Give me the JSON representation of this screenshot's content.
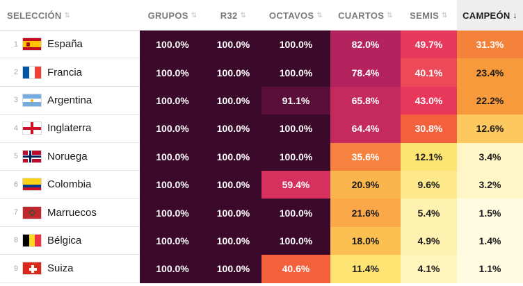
{
  "header": {
    "columns": [
      {
        "key": "seleccion",
        "label": "SELECCIÓN",
        "sort_icon": "sort-both-icon"
      },
      {
        "key": "grupos",
        "label": "GRUPOS",
        "sort_icon": "sort-both-icon"
      },
      {
        "key": "r32",
        "label": "R32",
        "sort_icon": "sort-both-icon"
      },
      {
        "key": "octavos",
        "label": "OCTAVOS",
        "sort_icon": "sort-both-icon"
      },
      {
        "key": "cuartos",
        "label": "CUARTOS",
        "sort_icon": "sort-both-icon"
      },
      {
        "key": "semis",
        "label": "SEMIS",
        "sort_icon": "sort-both-icon"
      },
      {
        "key": "campeon",
        "label": "CAMPEÓN",
        "sort_icon": "sort-desc-icon",
        "active": true
      }
    ]
  },
  "rows": [
    {
      "rank": "1",
      "team": "España",
      "flag": "flag-spain-icon",
      "values": [
        "100.0%",
        "100.0%",
        "100.0%",
        "82.0%",
        "49.7%",
        "31.3%"
      ]
    },
    {
      "rank": "2",
      "team": "Francia",
      "flag": "flag-france-icon",
      "values": [
        "100.0%",
        "100.0%",
        "100.0%",
        "78.4%",
        "40.1%",
        "23.4%"
      ]
    },
    {
      "rank": "3",
      "team": "Argentina",
      "flag": "flag-argentina-icon",
      "values": [
        "100.0%",
        "100.0%",
        "91.1%",
        "65.8%",
        "43.0%",
        "22.2%"
      ]
    },
    {
      "rank": "4",
      "team": "Inglaterra",
      "flag": "flag-england-icon",
      "values": [
        "100.0%",
        "100.0%",
        "100.0%",
        "64.4%",
        "30.8%",
        "12.6%"
      ]
    },
    {
      "rank": "5",
      "team": "Noruega",
      "flag": "flag-norway-icon",
      "values": [
        "100.0%",
        "100.0%",
        "100.0%",
        "35.6%",
        "12.1%",
        "3.4%"
      ]
    },
    {
      "rank": "6",
      "team": "Colombia",
      "flag": "flag-colombia-icon",
      "values": [
        "100.0%",
        "100.0%",
        "59.4%",
        "20.9%",
        "9.6%",
        "3.2%"
      ]
    },
    {
      "rank": "7",
      "team": "Marruecos",
      "flag": "flag-morocco-icon",
      "values": [
        "100.0%",
        "100.0%",
        "100.0%",
        "21.6%",
        "5.4%",
        "1.5%"
      ]
    },
    {
      "rank": "8",
      "team": "Bélgica",
      "flag": "flag-belgium-icon",
      "values": [
        "100.0%",
        "100.0%",
        "100.0%",
        "18.0%",
        "4.9%",
        "1.4%"
      ]
    },
    {
      "rank": "9",
      "team": "Suiza",
      "flag": "flag-switzerland-icon",
      "values": [
        "100.0%",
        "100.0%",
        "40.6%",
        "11.4%",
        "4.1%",
        "1.1%"
      ]
    }
  ],
  "cell_colors": [
    [
      "#3b0a2b",
      "#3b0a2b",
      "#3b0a2b",
      "#b3245e",
      "#e8385c",
      "#f5823a"
    ],
    [
      "#3b0a2b",
      "#3b0a2b",
      "#3b0a2b",
      "#b3245e",
      "#ec4a58",
      "#f79a3c"
    ],
    [
      "#3b0a2b",
      "#3b0a2b",
      "#5a0f3a",
      "#c52a5e",
      "#e8385c",
      "#f79a3c"
    ],
    [
      "#3b0a2b",
      "#3b0a2b",
      "#3b0a2b",
      "#c52a5e",
      "#f2603c",
      "#fdc860"
    ],
    [
      "#3b0a2b",
      "#3b0a2b",
      "#3b0a2b",
      "#f5833f",
      "#fde574",
      "#fff6c8"
    ],
    [
      "#3b0a2b",
      "#3b0a2b",
      "#d6305f",
      "#fbb54d",
      "#fde98c",
      "#fff6c8"
    ],
    [
      "#3b0a2b",
      "#3b0a2b",
      "#3b0a2b",
      "#fba84a",
      "#fff2b0",
      "#fffbe0"
    ],
    [
      "#3b0a2b",
      "#3b0a2b",
      "#3b0a2b",
      "#fbbf52",
      "#fff2b0",
      "#fffbe0"
    ],
    [
      "#3b0a2b",
      "#3b0a2b",
      "#f2603c",
      "#fde472",
      "#fff4bc",
      "#fffbe0"
    ]
  ]
}
